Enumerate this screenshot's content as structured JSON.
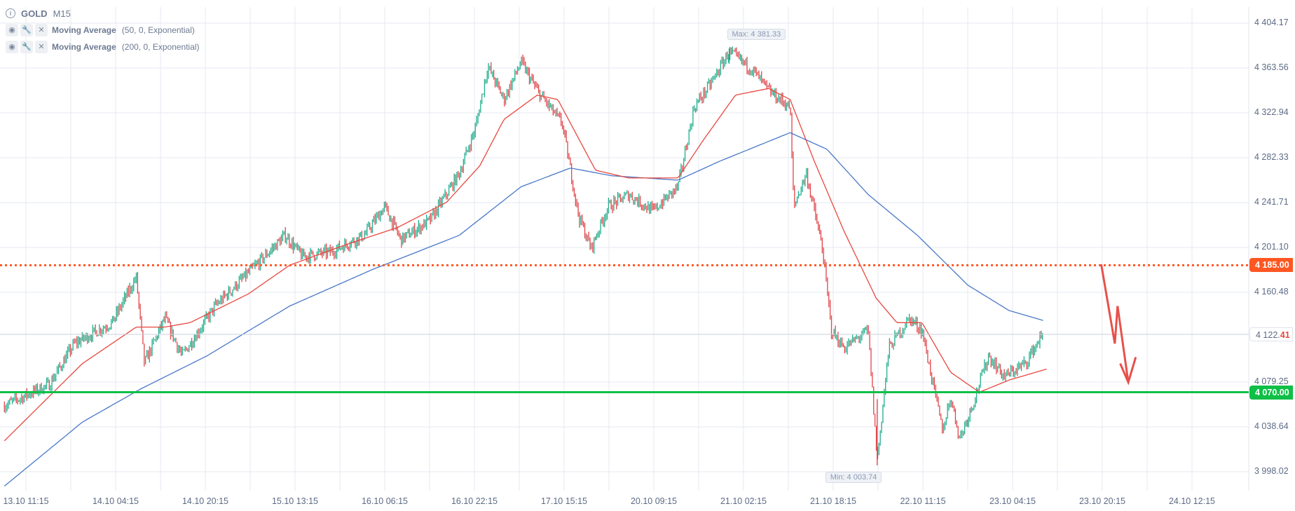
{
  "header": {
    "symbol": "GOLD",
    "timeframe": "M15"
  },
  "indicators": [
    {
      "name": "Moving Average",
      "params": "(50, 0, Exponential)",
      "color": "#e8473f"
    },
    {
      "name": "Moving Average",
      "params": "(200, 0, Exponential)",
      "color": "#4a78c8"
    }
  ],
  "chart_data": {
    "type": "candlestick",
    "instrument": "GOLD",
    "timeframe": "M15",
    "x_tick_labels": [
      "13.10 11:15",
      "14.10 04:15",
      "14.10 20:15",
      "15.10 13:15",
      "16.10 06:15",
      "16.10 22:15",
      "17.10 15:15",
      "20.10 09:15",
      "21.10 02:15",
      "21.10 18:15",
      "22.10 11:15",
      "23.10 04:15",
      "23.10 20:15",
      "24.10 12:15"
    ],
    "y_tick_labels": [
      "4 404.17",
      "4 363.56",
      "4 322.94",
      "4 282.33",
      "4 241.71",
      "4 201.10",
      "4 160.48",
      "4 122.41",
      "4 079.25",
      "4 038.64",
      "3 998.02"
    ],
    "y_ticks": [
      4404.17,
      4363.56,
      4322.94,
      4282.33,
      4241.71,
      4201.1,
      4160.48,
      4079.25,
      4038.64,
      3998.02
    ],
    "ylim": [
      3980,
      4420
    ],
    "grid": true,
    "price_path_note_units": "t = position in x tick index units",
    "price_path": [
      [
        -0.24,
        4058
      ],
      [
        0.26,
        4077
      ],
      [
        0.54,
        4114
      ],
      [
        0.96,
        4133
      ],
      [
        1.23,
        4174
      ],
      [
        1.32,
        4096
      ],
      [
        1.55,
        4137
      ],
      [
        1.74,
        4103
      ],
      [
        2.11,
        4148
      ],
      [
        2.48,
        4178
      ],
      [
        2.89,
        4212
      ],
      [
        3.08,
        4193
      ],
      [
        3.4,
        4197
      ],
      [
        3.77,
        4212
      ],
      [
        4.0,
        4238
      ],
      [
        4.18,
        4208
      ],
      [
        4.51,
        4226
      ],
      [
        4.83,
        4268
      ],
      [
        5.01,
        4309
      ],
      [
        5.15,
        4365
      ],
      [
        5.33,
        4335
      ],
      [
        5.52,
        4369
      ],
      [
        5.7,
        4343
      ],
      [
        5.98,
        4313
      ],
      [
        6.16,
        4230
      ],
      [
        6.3,
        4200
      ],
      [
        6.49,
        4238
      ],
      [
        6.72,
        4249
      ],
      [
        6.99,
        4234
      ],
      [
        7.27,
        4256
      ],
      [
        7.45,
        4328
      ],
      [
        7.64,
        4350
      ],
      [
        7.84,
        4378
      ],
      [
        8.1,
        4362
      ],
      [
        8.28,
        4343
      ],
      [
        8.52,
        4328
      ],
      [
        8.56,
        4238
      ],
      [
        8.7,
        4268
      ],
      [
        8.88,
        4200
      ],
      [
        8.98,
        4126
      ],
      [
        9.12,
        4110
      ],
      [
        9.39,
        4126
      ],
      [
        9.49,
        4008
      ],
      [
        9.62,
        4110
      ],
      [
        9.85,
        4137
      ],
      [
        9.99,
        4126
      ],
      [
        10.22,
        4035
      ],
      [
        10.31,
        4066
      ],
      [
        10.41,
        4028
      ],
      [
        10.55,
        4058
      ],
      [
        10.73,
        4103
      ],
      [
        10.91,
        4084
      ],
      [
        11.14,
        4096
      ],
      [
        11.3,
        4118
      ],
      [
        11.34,
        4122.41
      ]
    ],
    "ma50": [
      [
        -0.24,
        4026
      ],
      [
        0.63,
        4096
      ],
      [
        1.23,
        4129
      ],
      [
        1.55,
        4129
      ],
      [
        1.83,
        4133
      ],
      [
        2.48,
        4159
      ],
      [
        2.94,
        4185
      ],
      [
        3.58,
        4204
      ],
      [
        4.14,
        4219
      ],
      [
        4.69,
        4242
      ],
      [
        5.06,
        4275
      ],
      [
        5.33,
        4317
      ],
      [
        5.7,
        4339
      ],
      [
        5.93,
        4335
      ],
      [
        6.35,
        4271
      ],
      [
        6.72,
        4264
      ],
      [
        7.27,
        4264
      ],
      [
        7.55,
        4298
      ],
      [
        7.91,
        4339
      ],
      [
        8.28,
        4345
      ],
      [
        8.52,
        4335
      ],
      [
        8.79,
        4279
      ],
      [
        9.12,
        4216
      ],
      [
        9.48,
        4155
      ],
      [
        9.71,
        4133
      ],
      [
        9.99,
        4133
      ],
      [
        10.31,
        4088
      ],
      [
        10.63,
        4070
      ],
      [
        10.96,
        4081
      ],
      [
        11.38,
        4091
      ]
    ],
    "ma200": [
      [
        -0.24,
        3985
      ],
      [
        0.63,
        4043
      ],
      [
        1.28,
        4073
      ],
      [
        2.02,
        4103
      ],
      [
        2.94,
        4148
      ],
      [
        3.86,
        4181
      ],
      [
        4.83,
        4212
      ],
      [
        5.52,
        4256
      ],
      [
        6.07,
        4273
      ],
      [
        6.53,
        4266
      ],
      [
        7.27,
        4262
      ],
      [
        7.73,
        4279
      ],
      [
        8.52,
        4305
      ],
      [
        8.93,
        4290
      ],
      [
        9.39,
        4249
      ],
      [
        9.94,
        4212
      ],
      [
        10.5,
        4167
      ],
      [
        10.96,
        4144
      ],
      [
        11.34,
        4135
      ]
    ],
    "max": {
      "t": 7.84,
      "value": 4381.33,
      "label": "Max: 4 381.33"
    },
    "min": {
      "t": 9.49,
      "value": 4003.74,
      "label": "Min: 4 003.74"
    },
    "current_price": {
      "value": 4122.41,
      "label_main": "4 122.",
      "label_dec": "41"
    },
    "levels": [
      {
        "value": 4185.0,
        "label": "4 185.00",
        "style": "dotted",
        "color": "#ff5722"
      },
      {
        "value": 4070.0,
        "label": "4 070.00",
        "style": "solid",
        "color": "#0fbf47"
      }
    ],
    "annotation": {
      "type": "zigzag-arrow-down",
      "color": "#e8504a",
      "path": [
        [
          11.99,
          4185
        ],
        [
          12.14,
          4114
        ],
        [
          12.17,
          4148
        ],
        [
          12.29,
          4079
        ],
        [
          12.2,
          4096
        ],
        [
          12.29,
          4079
        ],
        [
          12.37,
          4101
        ]
      ]
    },
    "colors": {
      "up": "#1fae8c",
      "down": "#e0454a"
    }
  }
}
